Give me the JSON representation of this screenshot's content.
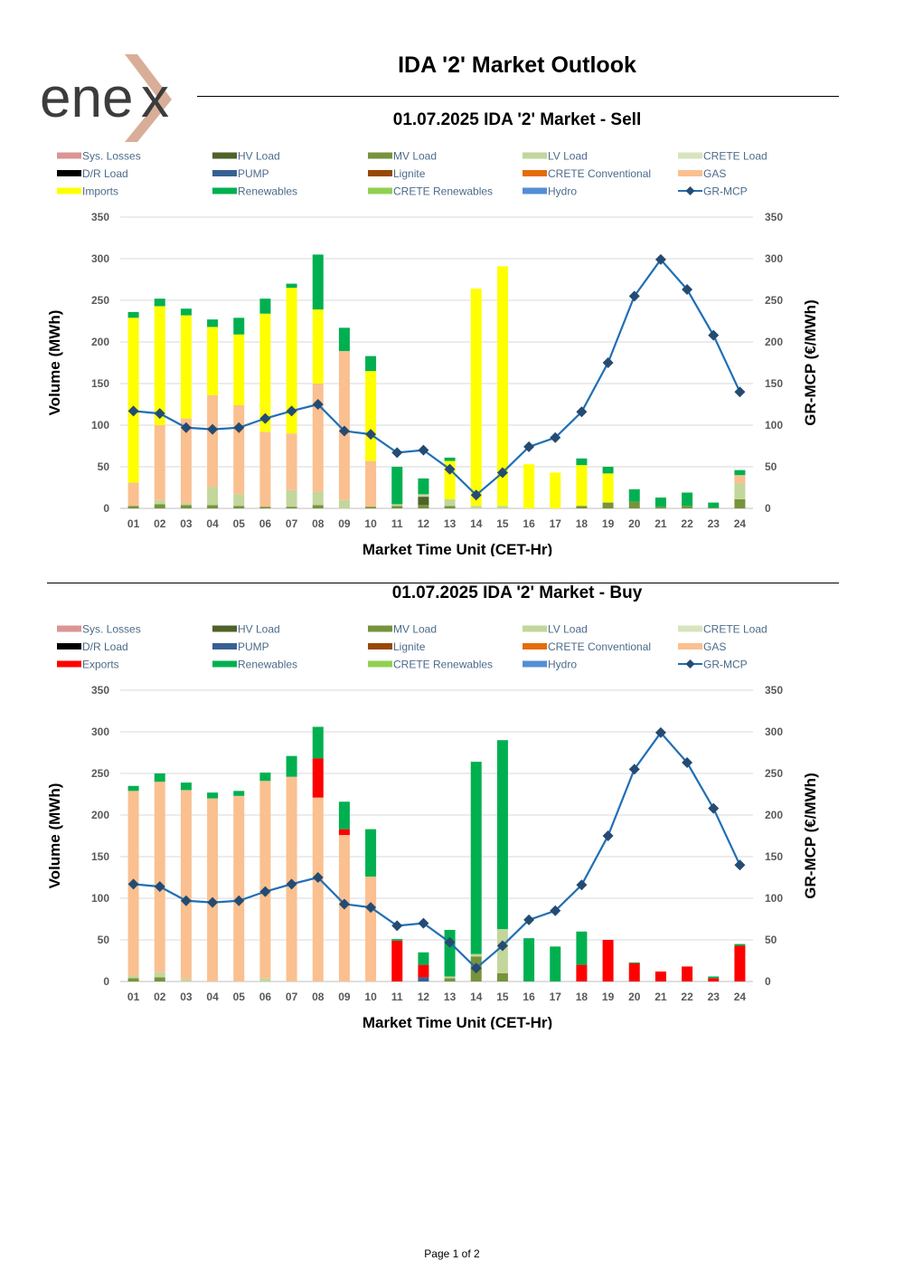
{
  "logo": {
    "text": "ene",
    "accent_color": "#D9AE98",
    "text_color": "#3C3C3C"
  },
  "header": {
    "title": "IDA '2' Market Outlook"
  },
  "footer": {
    "page": "Page 1 of 2"
  },
  "colors": {
    "Sys. Losses": "#DA9694",
    "HV Load": "#4F6228",
    "MV Load": "#77933C",
    "LV Load": "#C3D69B",
    "CRETE Load": "#D7E4BD",
    "D/R Load": "#000000",
    "PUMP": "#376092",
    "Lignite": "#974806",
    "CRETE Conventional": "#E46C0A",
    "GAS": "#FAC090",
    "Imports": "#FFFF00",
    "Exports": "#FF0000",
    "Renewables": "#00B050",
    "CRETE Renewables": "#92D050",
    "Hydro": "#558ED5",
    "GR-MCP": "#1F6FB5",
    "GR-MCP-marker": "#254B73",
    "axis_text": "#595959",
    "legend_text": "#4B6B8A",
    "grid": "#D9D9D9"
  },
  "chart_data": [
    {
      "id": "sell",
      "type": "bar",
      "stacked": true,
      "title": "01.07.2025  IDA '2' Market - Sell",
      "xlabel": "Market Time Unit (CET-Hr)",
      "ylabel": "Volume (MWh)",
      "y2label": "GR-MCP (€/MWh)",
      "ylim": [
        0,
        350
      ],
      "y2lim": [
        0,
        350
      ],
      "yticks": [
        0,
        50,
        100,
        150,
        200,
        250,
        300,
        350
      ],
      "categories": [
        "01",
        "02",
        "03",
        "04",
        "05",
        "06",
        "07",
        "08",
        "09",
        "10",
        "11",
        "12",
        "13",
        "14",
        "15",
        "16",
        "17",
        "18",
        "19",
        "20",
        "21",
        "22",
        "23",
        "24"
      ],
      "legend": [
        "Sys. Losses",
        "HV Load",
        "MV Load",
        "LV Load",
        "CRETE Load",
        "D/R Load",
        "PUMP",
        "Lignite",
        "CRETE Conventional",
        "GAS",
        "Imports",
        "Renewables",
        "CRETE Renewables",
        "Hydro",
        "GR-MCP"
      ],
      "series": [
        {
          "name": "MV Load",
          "values": [
            3,
            5,
            4,
            4,
            3,
            2,
            2,
            4,
            0,
            2,
            3,
            4,
            3,
            0,
            0,
            0,
            0,
            3,
            7,
            8,
            2,
            3,
            1,
            11
          ]
        },
        {
          "name": "HV Load",
          "values": [
            0,
            0,
            0,
            0,
            0,
            0,
            0,
            0,
            0,
            0,
            0,
            10,
            0,
            0,
            0,
            0,
            0,
            0,
            0,
            0,
            0,
            0,
            0,
            0
          ]
        },
        {
          "name": "LV Load",
          "values": [
            0,
            5,
            2,
            22,
            14,
            0,
            20,
            16,
            10,
            0,
            2,
            3,
            8,
            3,
            3,
            0,
            0,
            0,
            0,
            0,
            0,
            0,
            0,
            19
          ]
        },
        {
          "name": "GAS",
          "values": [
            28,
            90,
            102,
            110,
            107,
            90,
            68,
            130,
            179,
            55,
            0,
            0,
            0,
            0,
            0,
            0,
            0,
            0,
            0,
            0,
            0,
            0,
            0,
            10
          ]
        },
        {
          "name": "Imports",
          "values": [
            198,
            143,
            124,
            82,
            85,
            142,
            175,
            89,
            0,
            108,
            0,
            0,
            46,
            261,
            288,
            53,
            43,
            49,
            35,
            0,
            0,
            0,
            0,
            0
          ]
        },
        {
          "name": "Renewables",
          "values": [
            7,
            9,
            8,
            9,
            20,
            18,
            5,
            66,
            28,
            18,
            45,
            19,
            4,
            0,
            0,
            0,
            0,
            8,
            8,
            15,
            11,
            16,
            6,
            6
          ]
        }
      ],
      "line": {
        "name": "GR-MCP",
        "values": [
          117,
          114,
          97,
          95,
          97,
          108,
          117,
          125,
          93,
          89,
          67,
          70,
          47,
          16,
          43,
          74,
          85,
          116,
          175,
          255,
          299,
          263,
          208,
          140
        ]
      }
    },
    {
      "id": "buy",
      "type": "bar",
      "stacked": true,
      "title": "01.07.2025  IDA '2' Market - Buy",
      "xlabel": "Market Time Unit (CET-Hr)",
      "ylabel": "Volume (MWh)",
      "y2label": "GR-MCP (€/MWh)",
      "ylim": [
        0,
        350
      ],
      "y2lim": [
        0,
        350
      ],
      "yticks": [
        0,
        50,
        100,
        150,
        200,
        250,
        300,
        350
      ],
      "categories": [
        "01",
        "02",
        "03",
        "04",
        "05",
        "06",
        "07",
        "08",
        "09",
        "10",
        "11",
        "12",
        "13",
        "14",
        "15",
        "16",
        "17",
        "18",
        "19",
        "20",
        "21",
        "22",
        "23",
        "24"
      ],
      "legend": [
        "Sys. Losses",
        "HV Load",
        "MV Load",
        "LV Load",
        "CRETE Load",
        "D/R Load",
        "PUMP",
        "Lignite",
        "CRETE Conventional",
        "GAS",
        "Exports",
        "Renewables",
        "CRETE Renewables",
        "Hydro",
        "GR-MCP"
      ],
      "series": [
        {
          "name": "MV Load",
          "values": [
            4,
            5,
            0,
            0,
            0,
            0,
            0,
            0,
            0,
            0,
            0,
            0,
            4,
            30,
            10,
            0,
            0,
            0,
            0,
            0,
            0,
            0,
            0,
            0
          ]
        },
        {
          "name": "PUMP",
          "values": [
            0,
            0,
            0,
            0,
            0,
            0,
            0,
            0,
            0,
            0,
            0,
            5,
            0,
            0,
            0,
            0,
            0,
            0,
            0,
            0,
            0,
            0,
            0,
            0
          ]
        },
        {
          "name": "LV Load",
          "values": [
            3,
            6,
            3,
            0,
            0,
            4,
            0,
            0,
            0,
            0,
            0,
            0,
            2,
            3,
            53,
            0,
            0,
            0,
            0,
            0,
            0,
            0,
            0,
            0
          ]
        },
        {
          "name": "GAS",
          "values": [
            222,
            229,
            227,
            220,
            223,
            237,
            246,
            221,
            176,
            126,
            0,
            0,
            0,
            0,
            0,
            0,
            0,
            0,
            0,
            0,
            0,
            0,
            0,
            0
          ]
        },
        {
          "name": "Exports",
          "values": [
            0,
            0,
            0,
            0,
            0,
            0,
            0,
            47,
            7,
            0,
            49,
            15,
            0,
            0,
            0,
            0,
            0,
            20,
            50,
            22,
            12,
            18,
            4,
            43
          ]
        },
        {
          "name": "Renewables",
          "values": [
            6,
            10,
            9,
            7,
            6,
            10,
            25,
            38,
            33,
            57,
            2,
            15,
            56,
            231,
            227,
            52,
            42,
            40,
            0,
            1,
            0,
            0,
            2,
            2
          ]
        }
      ],
      "line": {
        "name": "GR-MCP",
        "values": [
          117,
          114,
          97,
          95,
          97,
          108,
          117,
          125,
          93,
          89,
          67,
          70,
          47,
          16,
          43,
          74,
          85,
          116,
          175,
          255,
          299,
          263,
          208,
          140
        ]
      }
    }
  ]
}
